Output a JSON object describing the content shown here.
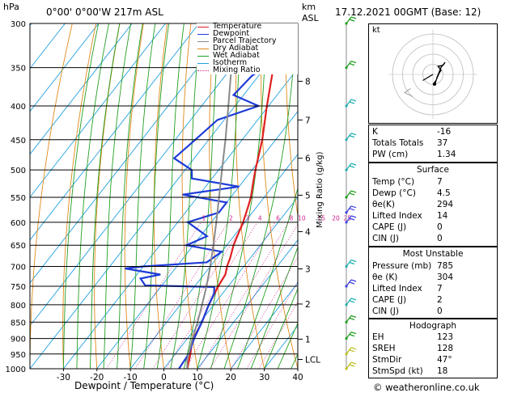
{
  "header": {
    "location": "0°00' 0°00'W 217m ASL",
    "datetime": "17.12.2021 00GMT (Base: 12)",
    "hpa_unit": "hPa",
    "km_unit": "km",
    "asl_unit": "ASL"
  },
  "legend": {
    "items": [
      {
        "label": "Temperature",
        "color": "#e02020",
        "style": "solid"
      },
      {
        "label": "Dewpoint",
        "color": "#1e3cd8",
        "style": "solid"
      },
      {
        "label": "Parcel Trajectory",
        "color": "#8a8a8a",
        "style": "solid"
      },
      {
        "label": "Dry Adiabat",
        "color": "#e08a1a",
        "style": "solid"
      },
      {
        "label": "Wet Adiabat",
        "color": "#22a022",
        "style": "solid"
      },
      {
        "label": "Isotherm",
        "color": "#20a0e0",
        "style": "solid"
      },
      {
        "label": "Mixing Ratio",
        "color": "#d01c8a",
        "style": "dotted"
      }
    ]
  },
  "chart_data": {
    "type": "line",
    "xlabel": "Dewpoint / Temperature (°C)",
    "ylabel": "hPa",
    "y2label": "Mixing Ratio (g/kg)",
    "pressure_levels": [
      300,
      350,
      400,
      450,
      500,
      550,
      600,
      650,
      700,
      750,
      800,
      850,
      900,
      950,
      1000
    ],
    "temp_ticks": [
      -30,
      -20,
      -10,
      0,
      10,
      20,
      30,
      40
    ],
    "xlim": [
      -40,
      40
    ],
    "ylim": [
      1000,
      300
    ],
    "km_ticks": [
      {
        "label": "8",
        "p": 367
      },
      {
        "label": "7",
        "p": 420
      },
      {
        "label": "6",
        "p": 480
      },
      {
        "label": "5",
        "p": 546
      },
      {
        "label": "4",
        "p": 620
      },
      {
        "label": "3",
        "p": 706
      },
      {
        "label": "2",
        "p": 798
      },
      {
        "label": "1",
        "p": 902
      },
      {
        "label": "LCL",
        "p": 968
      }
    ],
    "mixing_ratio_labels": [
      "1",
      "2",
      "3",
      "4",
      "6",
      "8",
      "10",
      "15",
      "20",
      "25"
    ],
    "mixing_ratio_values": [
      1,
      2,
      3,
      4,
      6,
      8,
      10,
      15,
      20,
      25
    ],
    "mixing_ratio_label_p": 591,
    "skew_slope_deg_per_decade": 1,
    "series": [
      {
        "name": "Temperature",
        "color": "#e02020",
        "points": [
          [
            1000,
            7
          ],
          [
            970,
            5.5
          ],
          [
            950,
            4.5
          ],
          [
            925,
            3
          ],
          [
            900,
            1.8
          ],
          [
            850,
            0.5
          ],
          [
            800,
            -1.5
          ],
          [
            750,
            -3
          ],
          [
            720,
            -3.6
          ],
          [
            700,
            -5
          ],
          [
            680,
            -6
          ],
          [
            650,
            -8
          ],
          [
            600,
            -10.5
          ],
          [
            570,
            -12.5
          ],
          [
            550,
            -14
          ],
          [
            520,
            -17
          ],
          [
            500,
            -19
          ],
          [
            450,
            -24
          ],
          [
            400,
            -30.5
          ],
          [
            350,
            -37.5
          ],
          [
            300,
            -46
          ]
        ]
      },
      {
        "name": "Dewpoint",
        "color": "#1e3cd8",
        "points": [
          [
            1000,
            4.5
          ],
          [
            950,
            4
          ],
          [
            900,
            2
          ],
          [
            850,
            0.5
          ],
          [
            800,
            -1.5
          ],
          [
            770,
            -2.5
          ],
          [
            752,
            -4
          ],
          [
            748,
            -25
          ],
          [
            730,
            -28
          ],
          [
            720,
            -23
          ],
          [
            705,
            -35
          ],
          [
            700,
            -30
          ],
          [
            690,
            -12
          ],
          [
            665,
            -10
          ],
          [
            650,
            -22
          ],
          [
            630,
            -18
          ],
          [
            600,
            -27
          ],
          [
            580,
            -20
          ],
          [
            560,
            -20
          ],
          [
            545,
            -35
          ],
          [
            530,
            -20
          ],
          [
            515,
            -36
          ],
          [
            500,
            -38
          ],
          [
            480,
            -46
          ],
          [
            450,
            -44
          ],
          [
            420,
            -42
          ],
          [
            400,
            -33
          ],
          [
            385,
            -43
          ],
          [
            360,
            -42
          ],
          [
            340,
            -38
          ],
          [
            300,
            -47
          ]
        ]
      },
      {
        "name": "Parcel Trajectory",
        "color": "#8a8a8a",
        "points": [
          [
            1000,
            7
          ],
          [
            968,
            4.8
          ],
          [
            900,
            1.5
          ],
          [
            850,
            -0.8
          ],
          [
            800,
            -3.5
          ],
          [
            750,
            -6.5
          ],
          [
            700,
            -10
          ],
          [
            650,
            -14
          ],
          [
            600,
            -18.5
          ],
          [
            550,
            -23.5
          ],
          [
            500,
            -29
          ],
          [
            450,
            -35
          ],
          [
            400,
            -42
          ],
          [
            350,
            -50
          ],
          [
            300,
            -58
          ]
        ]
      }
    ]
  },
  "hodograph": {
    "unit": "kt",
    "ring_speeds_kt": [
      10,
      20,
      30,
      40
    ],
    "hodo_points": [
      [
        0,
        -10
      ],
      [
        3,
        -6
      ],
      [
        6,
        1
      ],
      [
        8,
        4
      ],
      [
        5,
        8
      ],
      [
        10,
        9
      ],
      [
        12,
        12
      ],
      [
        8,
        7
      ],
      [
        4,
        -3
      ],
      [
        2,
        -10
      ]
    ],
    "storm_motion": [
      -10,
      -6
    ],
    "grey_points": [
      [
        -22,
        -14
      ],
      [
        -28,
        -18
      ],
      [
        -20,
        -22
      ]
    ]
  },
  "indices": {
    "rows": [
      {
        "key": "K",
        "value": "-16"
      },
      {
        "key": "Totals Totals",
        "value": "37"
      },
      {
        "key": "PW (cm)",
        "value": "1.34"
      }
    ]
  },
  "surface": {
    "title": "Surface",
    "rows": [
      {
        "key": "Temp (°C)",
        "value": "7"
      },
      {
        "key": "Dewp (°C)",
        "value": "4.5"
      },
      {
        "key": "θe(K)",
        "value": "294"
      },
      {
        "key": "Lifted Index",
        "value": "14"
      },
      {
        "key": "CAPE (J)",
        "value": "0"
      },
      {
        "key": "CIN (J)",
        "value": "0"
      }
    ]
  },
  "most_unstable": {
    "title": "Most Unstable",
    "rows": [
      {
        "key": "Pressure (mb)",
        "value": "785"
      },
      {
        "key": "θe (K)",
        "value": "304"
      },
      {
        "key": "Lifted Index",
        "value": "7"
      },
      {
        "key": "CAPE (J)",
        "value": "2"
      },
      {
        "key": "CIN (J)",
        "value": "0"
      }
    ]
  },
  "hodograph_table": {
    "title": "Hodograph",
    "rows": [
      {
        "key": "EH",
        "value": "123"
      },
      {
        "key": "SREH",
        "value": "128"
      },
      {
        "key": "StmDir",
        "value": "47°"
      },
      {
        "key": "StmSpd (kt)",
        "value": "18"
      }
    ]
  },
  "wind_barbs": {
    "levels": [
      300,
      350,
      400,
      450,
      500,
      550,
      580,
      600,
      700,
      750,
      800,
      850,
      900,
      950,
      1000
    ],
    "colors": [
      "#22a022",
      "#22a022",
      "#20b0b0",
      "#20b0b0",
      "#20b0b0",
      "#22a022",
      "#4040e0",
      "#4040e0",
      "#20b0b0",
      "#4040e0",
      "#20b0b0",
      "#22a022",
      "#22a022",
      "#c0c020",
      "#c0c020"
    ]
  },
  "copyright": "© weatheronline.co.uk"
}
